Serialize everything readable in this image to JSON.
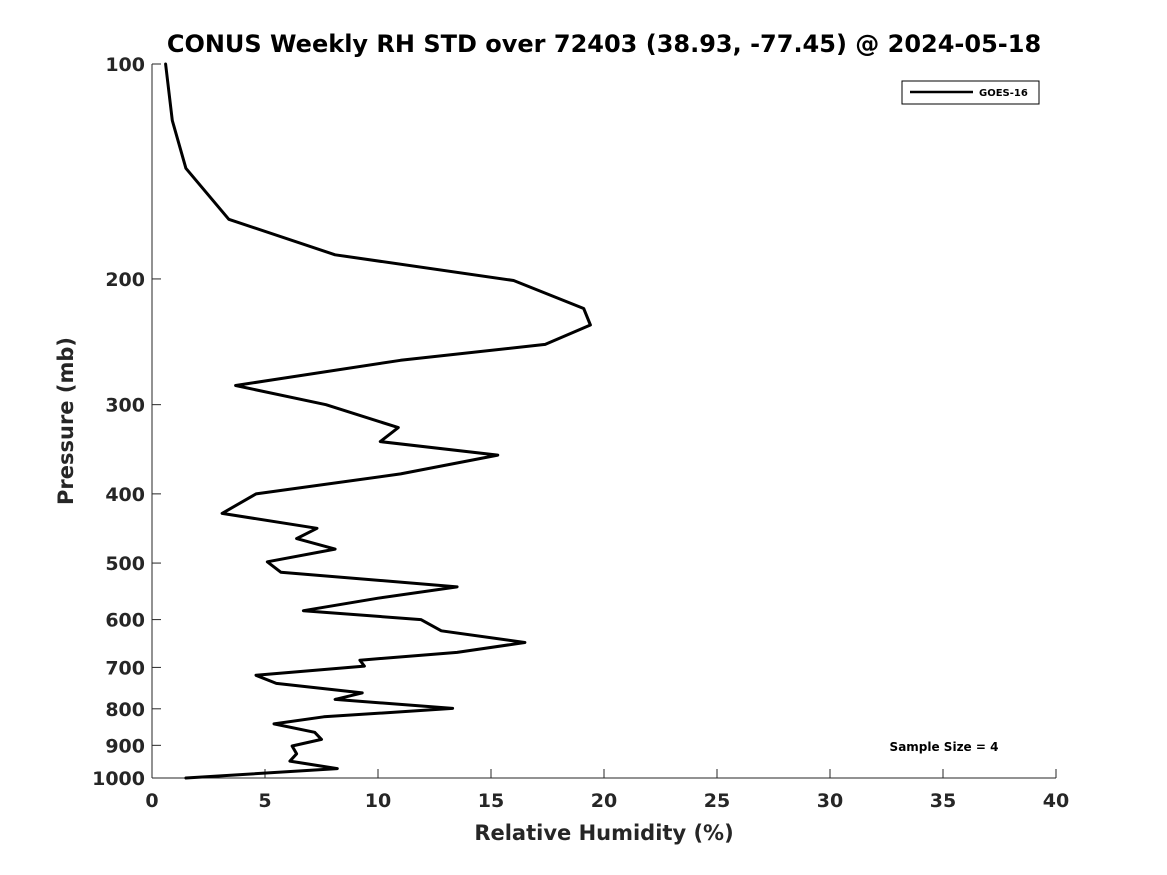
{
  "chart_data": {
    "type": "line",
    "title": "CONUS Weekly RH STD over 72403 (38.93, -77.45) @ 2024-05-18",
    "xlabel": "Relative Humidity (%)",
    "ylabel": "Pressure (mb)",
    "xlim": [
      0,
      40
    ],
    "ylim": [
      100,
      1000
    ],
    "y_scale": "log",
    "y_reversed": true,
    "x_ticks": [
      0,
      5,
      10,
      15,
      20,
      25,
      30,
      35,
      40
    ],
    "y_ticks": [
      100,
      200,
      300,
      400,
      500,
      600,
      700,
      800,
      900,
      1000
    ],
    "grid": false,
    "legend": {
      "position": "top-right",
      "entries": [
        "GOES-16"
      ]
    },
    "annotation": "Sample Size = 4",
    "series": [
      {
        "name": "GOES-16",
        "color": "#000000",
        "points": [
          [
            0.6,
            100
          ],
          [
            0.9,
            120
          ],
          [
            1.5,
            140
          ],
          [
            3.4,
            165
          ],
          [
            8.1,
            185
          ],
          [
            16,
            201
          ],
          [
            19.1,
            220
          ],
          [
            19.4,
            232
          ],
          [
            17.4,
            247
          ],
          [
            11,
            260
          ],
          [
            3.7,
            282
          ],
          [
            7.7,
            300
          ],
          [
            10.9,
            323
          ],
          [
            10.1,
            338
          ],
          [
            15.3,
            353
          ],
          [
            11,
            375
          ],
          [
            4.6,
            400
          ],
          [
            3.1,
            426
          ],
          [
            7.3,
            447
          ],
          [
            6.4,
            462
          ],
          [
            8.1,
            478
          ],
          [
            5.1,
            498
          ],
          [
            5.7,
            515
          ],
          [
            13.5,
            540
          ],
          [
            10,
            560
          ],
          [
            6.7,
            583
          ],
          [
            11.9,
            600
          ],
          [
            12.8,
            622
          ],
          [
            16.5,
            646
          ],
          [
            13.5,
            667
          ],
          [
            9.2,
            684
          ],
          [
            9.4,
            697
          ],
          [
            4.6,
            718
          ],
          [
            5.5,
            737
          ],
          [
            9.3,
            760
          ],
          [
            8.1,
            776
          ],
          [
            13.3,
            799
          ],
          [
            7.6,
            821
          ],
          [
            5.4,
            840
          ],
          [
            7.2,
            863
          ],
          [
            7.5,
            883
          ],
          [
            6.2,
            902
          ],
          [
            6.4,
            925
          ],
          [
            6.1,
            947
          ],
          [
            8.2,
            970
          ],
          [
            1.5,
            1000
          ]
        ]
      }
    ]
  }
}
